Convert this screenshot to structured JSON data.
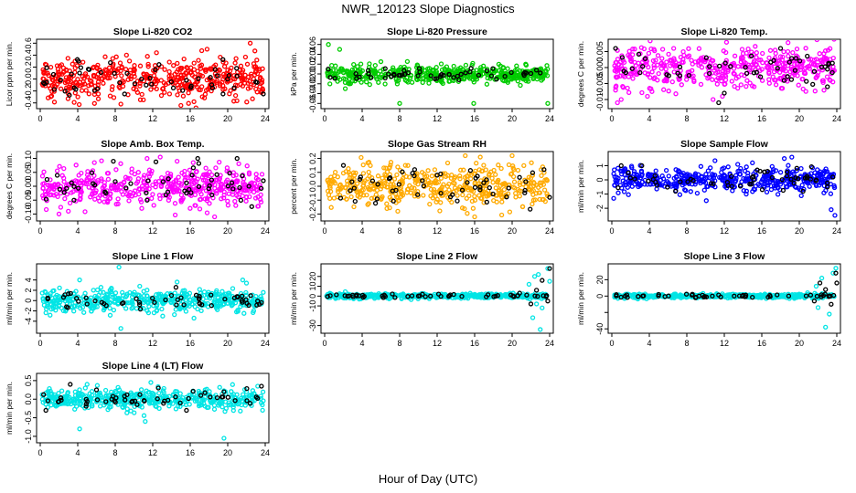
{
  "title": "NWR_120123  Slope Diagnostics",
  "xlabel": "Hour of Day (UTC)",
  "colors": {
    "co2": "#ff0000",
    "pressure": "#00cc00",
    "temp": "#ff00ff",
    "rh": "#ffaa00",
    "flow": "#0000ff",
    "line": "#00e5e5",
    "highlight": "#000000"
  },
  "chart_data": [
    {
      "type": "scatter",
      "title": "Slope Li-820 CO2",
      "ylabel": "Licor ppm per min.",
      "color": "#ff0000",
      "xlim": [
        0,
        24
      ],
      "ylim": [
        -0.45,
        0.62
      ],
      "xticks": [
        0,
        4,
        8,
        12,
        16,
        20,
        24
      ],
      "yticks": [
        -0.4,
        -0.2,
        0.0,
        0.2,
        0.4,
        0.6
      ],
      "ytick_labels": [
        "-0.4",
        "-0.2",
        "0.0",
        "0.2",
        "0.4",
        "0.6"
      ],
      "spread": 0.17,
      "outliers": [
        [
          8.6,
          -0.42
        ],
        [
          9.2,
          0.4
        ],
        [
          16.4,
          -0.38
        ],
        [
          17.8,
          0.5
        ],
        [
          22.4,
          0.6
        ],
        [
          12.4,
          0.44
        ]
      ],
      "black_points": [
        [
          4.2,
          0.1
        ],
        [
          9.0,
          -0.25
        ],
        [
          14.2,
          -0.15
        ],
        [
          15.6,
          -0.02
        ],
        [
          19.5,
          -0.25
        ],
        [
          23.8,
          -0.25
        ],
        [
          21.0,
          0.05
        ]
      ]
    },
    {
      "type": "scatter",
      "title": "Slope Li-820 Pressure",
      "ylabel": "kPa per min.",
      "color": "#00cc00",
      "xlim": [
        0,
        24
      ],
      "ylim": [
        -0.065,
        0.065
      ],
      "xticks": [
        0,
        4,
        8,
        12,
        16,
        20,
        24
      ],
      "yticks": [
        -0.06,
        -0.04,
        -0.02,
        0.0,
        0.02,
        0.04,
        0.06
      ],
      "ytick_labels": [
        "-0.06",
        "-0.04",
        "-0.02",
        "0.00",
        "0.02",
        "0.04",
        "0.06"
      ],
      "spread": 0.009,
      "outliers": [
        [
          0.4,
          0.06
        ],
        [
          1.6,
          0.05
        ],
        [
          2.2,
          -0.03
        ],
        [
          8.0,
          -0.06
        ],
        [
          15.9,
          -0.06
        ],
        [
          23.8,
          -0.06
        ],
        [
          6.0,
          0.025
        ]
      ],
      "black_points": [
        [
          6.8,
          0.0
        ],
        [
          15.5,
          0.004
        ],
        [
          17.8,
          -0.004
        ],
        [
          21.5,
          0.002
        ],
        [
          22.0,
          0.001
        ],
        [
          23.0,
          0.002
        ]
      ]
    },
    {
      "type": "scatter",
      "title": "Slope Li-820 Temp.",
      "ylabel": "degrees C per min.",
      "color": "#ff00ff",
      "xlim": [
        0,
        24
      ],
      "ylim": [
        -0.012,
        0.008
      ],
      "xticks": [
        0,
        4,
        8,
        12,
        16,
        20,
        24
      ],
      "yticks": [
        -0.01,
        -0.005,
        0.0,
        0.005
      ],
      "ytick_labels": [
        "-0.010",
        "-0.005",
        "0.000",
        "0.005"
      ],
      "spread": 0.0032,
      "outliers": [
        [
          0.6,
          -0.011
        ],
        [
          1.0,
          -0.01
        ],
        [
          3.8,
          -0.009
        ],
        [
          11.8,
          -0.009
        ],
        [
          10.8,
          -0.01
        ],
        [
          6.6,
          0.006
        ],
        [
          18.8,
          0.0078
        ]
      ],
      "black_points": [
        [
          0.4,
          0.006
        ],
        [
          11.4,
          -0.011
        ],
        [
          12.0,
          -0.008
        ],
        [
          18.0,
          0.006
        ],
        [
          23.0,
          -0.006
        ]
      ]
    },
    {
      "type": "scatter",
      "title": "Slope Amb. Box Temp.",
      "ylabel": "degrees C per min.",
      "color": "#ff00ff",
      "xlim": [
        0,
        24
      ],
      "ylim": [
        -0.115,
        0.115
      ],
      "xticks": [
        0,
        4,
        8,
        12,
        16,
        20,
        24
      ],
      "yticks": [
        -0.1,
        -0.05,
        0.0,
        0.05,
        0.1
      ],
      "ytick_labels": [
        "-0.10",
        "-0.05",
        "0.00",
        "0.05",
        "0.10"
      ],
      "spread": 0.035,
      "outliers": [
        [
          2.0,
          -0.1
        ],
        [
          3.0,
          -0.09
        ],
        [
          11.4,
          0.1
        ],
        [
          12.8,
          0.105
        ],
        [
          18.6,
          -0.11
        ],
        [
          14.6,
          0.09
        ]
      ],
      "black_points": [
        [
          3.6,
          -0.05
        ],
        [
          7.8,
          0.09
        ],
        [
          11.4,
          -0.05
        ],
        [
          16.8,
          0.1
        ],
        [
          21.0,
          0.1
        ],
        [
          23.8,
          0.02
        ]
      ]
    },
    {
      "type": "scatter",
      "title": "Slope Gas Stream RH",
      "ylabel": "percent per min.",
      "color": "#ffaa00",
      "xlim": [
        0,
        24
      ],
      "ylim": [
        -0.23,
        0.23
      ],
      "xticks": [
        0,
        4,
        8,
        12,
        16,
        20,
        24
      ],
      "yticks": [
        -0.2,
        -0.1,
        0.0,
        0.1,
        0.2
      ],
      "ytick_labels": [
        "-0.2",
        "-0.1",
        "0.0",
        "0.1",
        "0.2"
      ],
      "spread": 0.075,
      "outliers": [
        [
          15.0,
          0.22
        ],
        [
          16.6,
          0.21
        ],
        [
          16.0,
          -0.22
        ],
        [
          20.0,
          0.22
        ],
        [
          7.8,
          -0.18
        ]
      ],
      "black_points": [
        [
          2.0,
          0.15
        ],
        [
          9.6,
          0.12
        ],
        [
          12.0,
          0.08
        ],
        [
          12.4,
          -0.05
        ],
        [
          23.4,
          0.12
        ],
        [
          24.0,
          -0.08
        ]
      ]
    },
    {
      "type": "scatter",
      "title": "Slope Sample Flow",
      "ylabel": "ml/min per min.",
      "color": "#0000ff",
      "xlim": [
        0,
        24
      ],
      "ylim": [
        -2.7,
        1.8
      ],
      "xticks": [
        0,
        4,
        8,
        12,
        16,
        20,
        24
      ],
      "yticks": [
        -2,
        -1,
        0,
        1
      ],
      "ytick_labels": [
        "-2",
        "-1",
        "0",
        "1"
      ],
      "spread": 0.42,
      "outliers": [
        [
          23.8,
          -2.5
        ],
        [
          23.4,
          -2.1
        ],
        [
          0.2,
          -1.3
        ],
        [
          18.4,
          1.5
        ],
        [
          19.2,
          1.6
        ],
        [
          15.0,
          1.2
        ]
      ],
      "black_points": [
        [
          1.0,
          1.0
        ],
        [
          3.2,
          1.0
        ],
        [
          6.8,
          -0.8
        ],
        [
          12.4,
          -0.4
        ],
        [
          16.6,
          0.6
        ],
        [
          20.4,
          -0.8
        ],
        [
          23.0,
          -0.5
        ]
      ]
    },
    {
      "type": "scatter",
      "title": "Slope Line 1 Flow",
      "ylabel": "ml/min per min.",
      "color": "#00e5e5",
      "xlim": [
        0,
        24
      ],
      "ylim": [
        -5.8,
        6.6
      ],
      "xticks": [
        0,
        4,
        8,
        12,
        16,
        20,
        24
      ],
      "yticks": [
        -4,
        -2,
        0,
        2,
        4
      ],
      "ytick_labels": [
        "-4",
        "-2",
        "0",
        "2",
        "4"
      ],
      "spread": 1.1,
      "outliers": [
        [
          8.4,
          6.5
        ],
        [
          8.6,
          -5.4
        ],
        [
          4.2,
          4.0
        ],
        [
          21.6,
          4.0
        ],
        [
          22.0,
          3.4
        ],
        [
          14.6,
          3.6
        ],
        [
          16.4,
          -3.4
        ]
      ],
      "black_points": [
        [
          0.8,
          0.5
        ],
        [
          2.8,
          -1.2
        ],
        [
          6.8,
          -0.6
        ],
        [
          14.0,
          1.0
        ],
        [
          17.0,
          -0.5
        ],
        [
          21.0,
          0.8
        ],
        [
          23.6,
          -0.4
        ]
      ]
    },
    {
      "type": "scatter",
      "title": "Slope Line 2 Flow",
      "ylabel": "ml/min per min.",
      "color": "#00e5e5",
      "xlim": [
        0,
        24
      ],
      "ylim": [
        -35,
        30
      ],
      "xticks": [
        0,
        4,
        8,
        12,
        16,
        20,
        24
      ],
      "yticks": [
        -30,
        -10,
        0,
        10,
        20
      ],
      "ytick_labels": [
        "-30",
        "-10",
        "0",
        "10",
        "20"
      ],
      "spread": 1.2,
      "outliers": [
        [
          22.4,
          20
        ],
        [
          22.8,
          22
        ],
        [
          23.2,
          -12
        ],
        [
          23.0,
          -34
        ],
        [
          22.2,
          -22
        ],
        [
          23.8,
          28
        ],
        [
          24.0,
          15
        ],
        [
          21.8,
          12
        ],
        [
          22.6,
          -8
        ]
      ],
      "black_points": [
        [
          20.8,
          3
        ],
        [
          22.0,
          -8
        ],
        [
          22.6,
          6
        ],
        [
          23.2,
          16
        ],
        [
          23.8,
          -5
        ],
        [
          24.0,
          28
        ],
        [
          3.0,
          1
        ],
        [
          10.0,
          0
        ]
      ]
    },
    {
      "type": "scatter",
      "title": "Slope Line 3 Flow",
      "ylabel": "ml/min per min.",
      "color": "#00e5e5",
      "xlim": [
        0,
        24
      ],
      "ylim": [
        -42,
        36
      ],
      "xticks": [
        0,
        4,
        8,
        12,
        16,
        20,
        24
      ],
      "yticks": [
        -40,
        -20,
        0,
        20
      ],
      "ytick_labels": [
        "-40",
        "",
        "0",
        "20"
      ],
      "spread": 1.3,
      "outliers": [
        [
          22.4,
          22
        ],
        [
          22.8,
          -38
        ],
        [
          23.2,
          -22
        ],
        [
          23.6,
          28
        ],
        [
          22.0,
          -14
        ],
        [
          21.8,
          12
        ],
        [
          23.9,
          34
        ]
      ],
      "black_points": [
        [
          21.6,
          -6
        ],
        [
          22.2,
          16
        ],
        [
          22.8,
          8
        ],
        [
          23.4,
          -10
        ],
        [
          23.9,
          28
        ],
        [
          24.0,
          16
        ],
        [
          5.0,
          2
        ],
        [
          14.0,
          1
        ]
      ]
    },
    {
      "type": "scatter",
      "title": "Slope Line 4 (LT) Flow",
      "ylabel": "ml/min per min.",
      "color": "#00e5e5",
      "xlim": [
        0,
        24
      ],
      "ylim": [
        -1.1,
        0.62
      ],
      "xticks": [
        0,
        4,
        8,
        12,
        16,
        20,
        24
      ],
      "yticks": [
        -1.0,
        -0.5,
        0.0,
        0.5
      ],
      "ytick_labels": [
        "-1.0",
        "-0.5",
        "0.0",
        "0.5"
      ],
      "spread": 0.12,
      "outliers": [
        [
          4.2,
          -0.8
        ],
        [
          19.6,
          -1.05
        ],
        [
          11.2,
          -0.6
        ],
        [
          5.0,
          0.4
        ],
        [
          11.8,
          0.45
        ],
        [
          23.2,
          0.35
        ]
      ],
      "black_points": [
        [
          3.2,
          0.4
        ],
        [
          0.6,
          -0.3
        ],
        [
          6.0,
          0.25
        ],
        [
          12.6,
          0.3
        ],
        [
          15.6,
          -0.3
        ],
        [
          19.6,
          0.2
        ],
        [
          23.6,
          0.35
        ]
      ]
    }
  ]
}
